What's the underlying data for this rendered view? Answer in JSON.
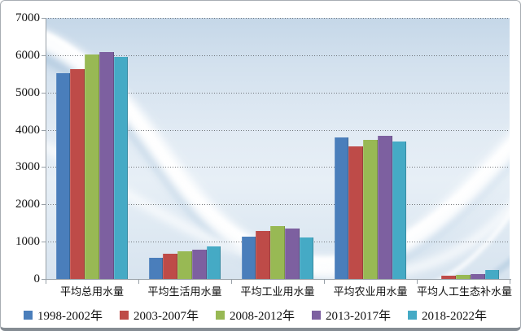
{
  "chart_data": {
    "type": "bar",
    "title": "",
    "categories": [
      "平均总用水量",
      "平均生活用水量",
      "平均工业用水量",
      "平均农业用水量",
      "平均人工生态补水量"
    ],
    "series": [
      {
        "name": "1998-2002年",
        "color": "#4A7EBB",
        "values": [
          5520,
          570,
          1140,
          3790,
          0
        ]
      },
      {
        "name": "2003-2007年",
        "color": "#BE4B48",
        "values": [
          5620,
          670,
          1290,
          3550,
          80
        ]
      },
      {
        "name": "2008-2012年",
        "color": "#98B954",
        "values": [
          6030,
          750,
          1420,
          3740,
          110
        ]
      },
      {
        "name": "2013-2017年",
        "color": "#7D60A0",
        "values": [
          6090,
          790,
          1350,
          3840,
          130
        ]
      },
      {
        "name": "2018-2022年",
        "color": "#45AAC5",
        "values": [
          5950,
          870,
          1120,
          3680,
          250
        ]
      }
    ],
    "xlabel": "",
    "ylabel": "",
    "ylim": [
      0,
      7000
    ],
    "ytick_interval": 1000,
    "yticks": [
      "0",
      "1000",
      "2000",
      "3000",
      "4000",
      "5000",
      "6000",
      "7000"
    ],
    "grid": "horizontal-dotted",
    "legend_position": "bottom"
  }
}
